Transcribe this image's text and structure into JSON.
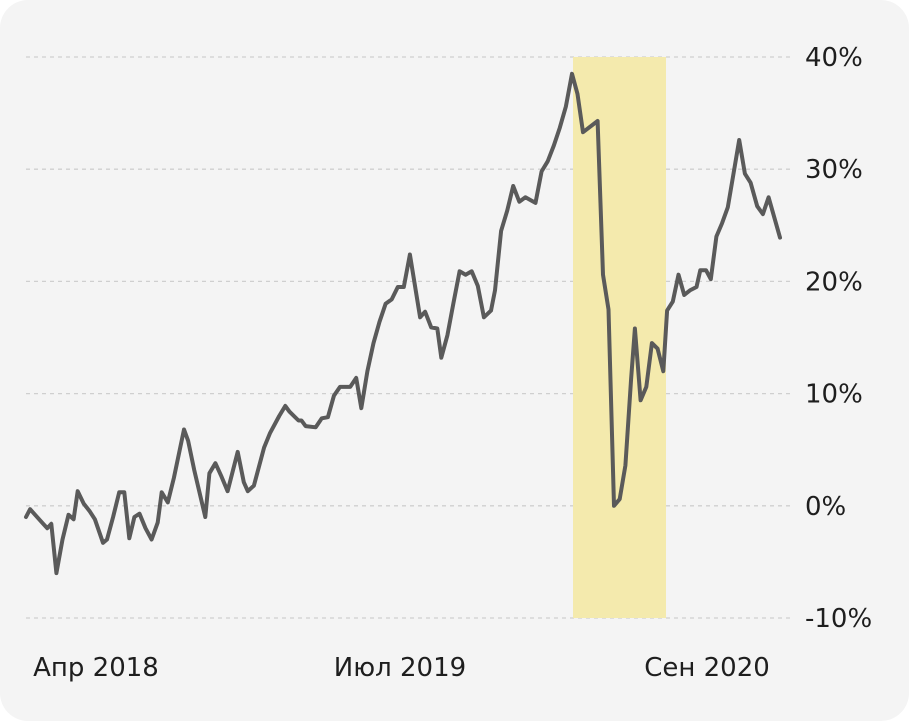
{
  "chart_data": {
    "type": "line",
    "title": "",
    "xlabel": "",
    "ylabel": "",
    "ylim": [
      -10,
      40
    ],
    "y_axis_side": "right",
    "y_ticks": [
      {
        "value": 40,
        "label": "40%"
      },
      {
        "value": 30,
        "label": "30%"
      },
      {
        "value": 20,
        "label": "20%"
      },
      {
        "value": 10,
        "label": "10%"
      },
      {
        "value": 0,
        "label": "0%"
      },
      {
        "value": -10,
        "label": "-10%"
      }
    ],
    "x_ticks": [
      {
        "date": "2018-04",
        "label": "Апр 2018"
      },
      {
        "date": "2019-07",
        "label": "Июл 2019"
      },
      {
        "date": "2020-09",
        "label": "Сен 2020"
      }
    ],
    "xlim": [
      "2018-03",
      "2020-11"
    ],
    "highlight": {
      "from": "2020-02-20",
      "to": "2020-06-15",
      "color": "#f4eaad"
    },
    "grid": true,
    "colors": {
      "line": "#5a5a5a",
      "grid": "#cfcfcf",
      "background": "#f4f4f4"
    },
    "series": [
      {
        "points": [
          [
            "2018-03-01",
            -1.0
          ],
          [
            "2018-03-05",
            -0.3
          ],
          [
            "2018-03-10",
            -0.8
          ],
          [
            "2018-03-18",
            -1.6
          ],
          [
            "2018-03-22",
            -2.0
          ],
          [
            "2018-03-26",
            -1.6
          ],
          [
            "2018-03-31",
            -6.0
          ],
          [
            "2018-04-06",
            -3.0
          ],
          [
            "2018-04-12",
            -0.8
          ],
          [
            "2018-04-17",
            -1.2
          ],
          [
            "2018-04-21",
            1.3
          ],
          [
            "2018-04-27",
            0.2
          ],
          [
            "2018-05-03",
            -0.5
          ],
          [
            "2018-05-08",
            -1.2
          ],
          [
            "2018-05-16",
            -3.3
          ],
          [
            "2018-05-20",
            -3.0
          ],
          [
            "2018-05-26",
            -1.0
          ],
          [
            "2018-06-01",
            1.2
          ],
          [
            "2018-06-06",
            1.2
          ],
          [
            "2018-06-11",
            -2.9
          ],
          [
            "2018-06-16",
            -1.0
          ],
          [
            "2018-06-21",
            -0.7
          ],
          [
            "2018-06-27",
            -2.0
          ],
          [
            "2018-07-03",
            -3.0
          ],
          [
            "2018-07-09",
            -1.5
          ],
          [
            "2018-07-13",
            1.2
          ],
          [
            "2018-07-19",
            0.3
          ],
          [
            "2018-07-25",
            2.5
          ],
          [
            "2018-08-04",
            6.8
          ],
          [
            "2018-08-08",
            5.8
          ],
          [
            "2018-08-14",
            3.2
          ],
          [
            "2018-08-25",
            -1.0
          ],
          [
            "2018-08-29",
            2.9
          ],
          [
            "2018-09-04",
            3.8
          ],
          [
            "2018-09-10",
            2.6
          ],
          [
            "2018-09-16",
            1.3
          ],
          [
            "2018-09-26",
            4.8
          ],
          [
            "2018-10-02",
            2.1
          ],
          [
            "2018-10-06",
            1.3
          ],
          [
            "2018-10-12",
            1.8
          ],
          [
            "2018-10-22",
            5.2
          ],
          [
            "2018-10-28",
            6.5
          ],
          [
            "2018-11-06",
            8.0
          ],
          [
            "2018-11-12",
            8.9
          ],
          [
            "2018-11-16",
            8.4
          ],
          [
            "2018-11-25",
            7.6
          ],
          [
            "2018-11-28",
            7.6
          ],
          [
            "2018-12-02",
            7.1
          ],
          [
            "2018-12-12",
            7.0
          ],
          [
            "2018-12-18",
            7.8
          ],
          [
            "2018-12-24",
            7.9
          ],
          [
            "2018-12-30",
            9.8
          ],
          [
            "2019-01-05",
            10.6
          ],
          [
            "2019-01-15",
            10.6
          ],
          [
            "2019-01-21",
            11.4
          ],
          [
            "2019-01-26",
            8.7
          ],
          [
            "2019-02-01",
            12.0
          ],
          [
            "2019-02-07",
            14.5
          ],
          [
            "2019-02-13",
            16.4
          ],
          [
            "2019-02-19",
            18.0
          ],
          [
            "2019-02-25",
            18.4
          ],
          [
            "2019-03-03",
            19.5
          ],
          [
            "2019-03-09",
            19.5
          ],
          [
            "2019-03-15",
            22.4
          ],
          [
            "2019-03-25",
            16.8
          ],
          [
            "2019-03-30",
            17.3
          ],
          [
            "2019-04-05",
            15.9
          ],
          [
            "2019-04-11",
            15.8
          ],
          [
            "2019-04-15",
            13.2
          ],
          [
            "2019-04-21",
            15.2
          ],
          [
            "2019-04-27",
            18.1
          ],
          [
            "2019-05-03",
            20.9
          ],
          [
            "2019-05-09",
            20.6
          ],
          [
            "2019-05-15",
            20.9
          ],
          [
            "2019-05-21",
            19.6
          ],
          [
            "2019-05-27",
            16.8
          ],
          [
            "2019-06-03",
            17.4
          ],
          [
            "2019-06-07",
            19.2
          ],
          [
            "2019-06-13",
            24.5
          ],
          [
            "2019-06-19",
            26.3
          ],
          [
            "2019-06-25",
            28.5
          ],
          [
            "2019-07-01",
            27.1
          ],
          [
            "2019-07-07",
            27.5
          ],
          [
            "2019-07-17",
            27.0
          ],
          [
            "2019-07-23",
            29.8
          ],
          [
            "2019-07-29",
            30.7
          ],
          [
            "2019-08-04",
            32.1
          ],
          [
            "2019-08-10",
            33.7
          ],
          [
            "2019-08-16",
            35.6
          ],
          [
            "2019-08-22",
            38.5
          ],
          [
            "2019-08-28",
            36.7
          ],
          [
            "2019-09-03",
            33.3
          ],
          [
            "2019-09-19",
            34.3
          ],
          [
            "2019-09-25",
            20.6
          ],
          [
            "2019-10-01",
            17.5
          ],
          [
            "2019-10-07",
            0.0
          ],
          [
            "2019-10-13",
            0.6
          ],
          [
            "2019-10-19",
            3.6
          ],
          [
            "2019-10-25",
            11.3
          ],
          [
            "2019-10-29",
            15.8
          ],
          [
            "2019-11-04",
            9.4
          ],
          [
            "2019-11-10",
            10.6
          ],
          [
            "2019-11-16",
            14.5
          ],
          [
            "2019-11-22",
            14.0
          ],
          [
            "2019-11-28",
            12.0
          ],
          [
            "2019-12-02",
            17.4
          ],
          [
            "2019-12-08",
            18.2
          ],
          [
            "2019-12-14",
            20.6
          ],
          [
            "2019-12-20",
            18.8
          ],
          [
            "2019-12-26",
            19.2
          ],
          [
            "2020-01-02",
            19.5
          ],
          [
            "2020-01-06",
            21.0
          ],
          [
            "2020-01-12",
            21.0
          ],
          [
            "2020-01-17",
            20.2
          ],
          [
            "2020-01-23",
            24.0
          ],
          [
            "2020-01-29",
            25.2
          ],
          [
            "2020-02-04",
            26.6
          ],
          [
            "2020-02-10",
            29.6
          ],
          [
            "2020-02-16",
            32.6
          ],
          [
            "2020-02-22",
            29.6
          ],
          [
            "2020-02-28",
            28.8
          ],
          [
            "2020-03-06",
            26.7
          ],
          [
            "2020-03-12",
            26.0
          ],
          [
            "2020-03-18",
            27.5
          ],
          [
            "2020-03-24",
            25.7
          ],
          [
            "2020-03-30",
            23.9
          ]
        ]
      }
    ]
  }
}
